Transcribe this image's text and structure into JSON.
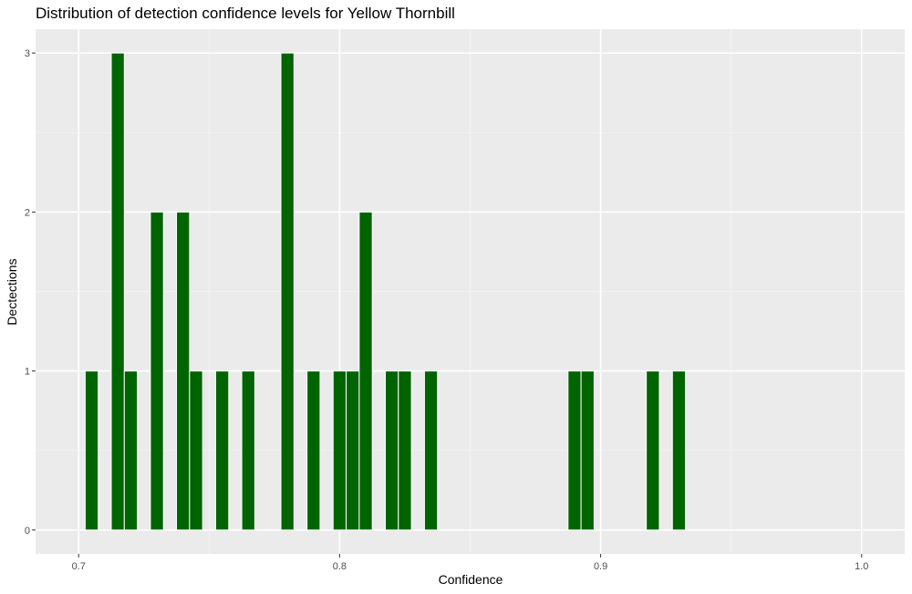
{
  "chart_data": {
    "type": "bar",
    "title": "Distribution of detection confidence levels for Yellow Thornbill",
    "xlabel": "Confidence",
    "ylabel": "Dectections",
    "xlim": [
      0.6835,
      1.0165
    ],
    "ylim": [
      -0.15,
      3.15
    ],
    "x_ticks": [
      0.7,
      0.8,
      0.9,
      1.0
    ],
    "x_tick_labels": [
      "0.7",
      "0.8",
      "0.9",
      "1.0"
    ],
    "y_ticks": [
      0,
      1,
      2,
      3
    ],
    "y_tick_labels": [
      "0",
      "1",
      "2",
      "3"
    ],
    "bin_width": 0.005,
    "bars": [
      {
        "x": 0.705,
        "count": 1
      },
      {
        "x": 0.715,
        "count": 3
      },
      {
        "x": 0.72,
        "count": 1
      },
      {
        "x": 0.73,
        "count": 2
      },
      {
        "x": 0.74,
        "count": 2
      },
      {
        "x": 0.745,
        "count": 1
      },
      {
        "x": 0.755,
        "count": 1
      },
      {
        "x": 0.765,
        "count": 1
      },
      {
        "x": 0.78,
        "count": 3
      },
      {
        "x": 0.79,
        "count": 1
      },
      {
        "x": 0.8,
        "count": 1
      },
      {
        "x": 0.805,
        "count": 1
      },
      {
        "x": 0.81,
        "count": 2
      },
      {
        "x": 0.82,
        "count": 1
      },
      {
        "x": 0.825,
        "count": 1
      },
      {
        "x": 0.835,
        "count": 1
      },
      {
        "x": 0.89,
        "count": 1
      },
      {
        "x": 0.895,
        "count": 1
      },
      {
        "x": 0.92,
        "count": 1
      },
      {
        "x": 0.93,
        "count": 1
      }
    ],
    "grid": true,
    "legend": "none",
    "colors": {
      "bar_fill": "#006400",
      "bar_outline": "#ffffff",
      "panel_background": "#ebebeb",
      "grid_major": "#ffffff",
      "grid_minor": "#f4f4f4"
    }
  }
}
